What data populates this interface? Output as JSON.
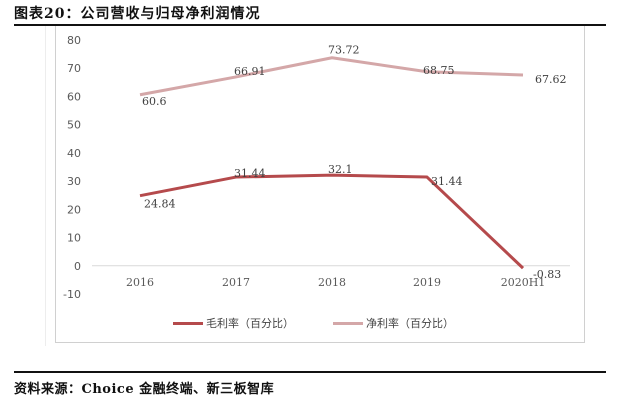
{
  "header": {
    "title": "图表20：公司营收与归母净利润情况"
  },
  "footer": {
    "source": "资料来源：Choice 金融终端、新三板智库"
  },
  "colors": {
    "gross_margin": "#b54a4c",
    "net_margin": "#d4a7a8",
    "axis": "#d9d9d9",
    "tick_text": "#595959",
    "label_text": "#404040"
  },
  "legend": {
    "items": [
      {
        "label": "毛利率（百分比）"
      },
      {
        "label": "净利率（百分比）"
      }
    ]
  },
  "chart_data": {
    "type": "line",
    "title": "图表20：公司营收与归母净利润情况",
    "xlabel": "",
    "ylabel": "",
    "categories": [
      "2016",
      "2017",
      "2018",
      "2019",
      "2020H1"
    ],
    "series": [
      {
        "name": "毛利率（百分比）",
        "values": [
          24.84,
          31.44,
          32.1,
          31.44,
          -0.83
        ]
      },
      {
        "name": "净利率（百分比）",
        "values": [
          60.6,
          66.91,
          73.72,
          68.75,
          67.62
        ]
      }
    ],
    "ylim": [
      -10,
      80
    ],
    "yticks": [
      "80",
      "70",
      "60",
      "50",
      "40",
      "30",
      "20",
      "10",
      "0",
      "-10"
    ],
    "grid": false,
    "legend_position": "bottom",
    "data_labels": true
  }
}
